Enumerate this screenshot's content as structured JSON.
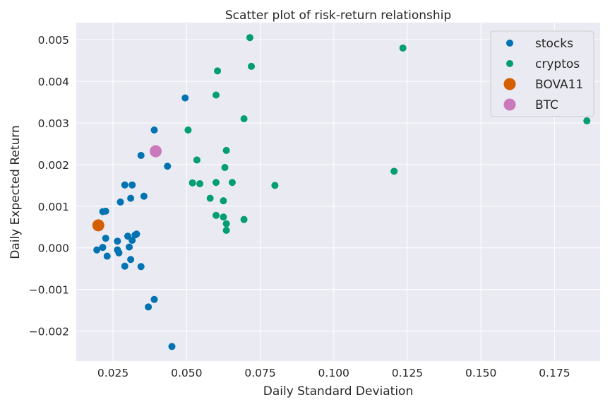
{
  "chart_data": {
    "type": "scatter",
    "title": "Scatter plot of risk-return relationship",
    "xlabel": "Daily Standard Deviation",
    "ylabel": "Daily Expected Return",
    "xlim": [
      0.0125,
      0.1905
    ],
    "ylim": [
      -0.00272,
      0.00541
    ],
    "xticks": [
      0.025,
      0.05,
      0.075,
      0.1,
      0.125,
      0.15,
      0.175
    ],
    "xtick_labels": [
      "0.025",
      "0.050",
      "0.075",
      "0.100",
      "0.125",
      "0.150",
      "0.175"
    ],
    "yticks": [
      -0.002,
      -0.001,
      0.0,
      0.001,
      0.002,
      0.003,
      0.004,
      0.005
    ],
    "ytick_labels": [
      "−0.002",
      "−0.001",
      "0.000",
      "0.001",
      "0.002",
      "0.003",
      "0.004",
      "0.005"
    ],
    "grid": true,
    "legend_position": "top-right",
    "background": "#eaeaf2",
    "series": [
      {
        "name": "stocks",
        "color": "#0173b2",
        "marker": "small",
        "points": [
          [
            0.0495,
            0.0036
          ],
          [
            0.039,
            0.00283
          ],
          [
            0.0345,
            0.00222
          ],
          [
            0.0435,
            0.00196
          ],
          [
            0.029,
            0.00151
          ],
          [
            0.0315,
            0.00151
          ],
          [
            0.0355,
            0.00124
          ],
          [
            0.031,
            0.00119
          ],
          [
            0.0275,
            0.0011
          ],
          [
            0.0225,
            0.00088
          ],
          [
            0.0215,
            0.00087
          ],
          [
            0.033,
            0.00033
          ],
          [
            0.0325,
            0.00031
          ],
          [
            0.03,
            0.00028
          ],
          [
            0.0315,
            0.00018
          ],
          [
            0.0225,
            0.00023
          ],
          [
            0.0265,
            0.00016
          ],
          [
            0.0305,
            2e-05
          ],
          [
            0.0215,
            1e-05
          ],
          [
            0.0195,
            -5e-05
          ],
          [
            0.0265,
            -5e-05
          ],
          [
            0.027,
            -0.00012
          ],
          [
            0.023,
            -0.0002
          ],
          [
            0.031,
            -0.00028
          ],
          [
            0.029,
            -0.00044
          ],
          [
            0.0345,
            -0.00045
          ],
          [
            0.039,
            -0.00124
          ],
          [
            0.037,
            -0.00142
          ],
          [
            0.045,
            -0.00237
          ]
        ]
      },
      {
        "name": "cryptos",
        "color": "#029e73",
        "marker": "small",
        "points": [
          [
            0.0715,
            0.00505
          ],
          [
            0.1235,
            0.0048
          ],
          [
            0.072,
            0.00436
          ],
          [
            0.0605,
            0.00425
          ],
          [
            0.06,
            0.00367
          ],
          [
            0.0695,
            0.0031
          ],
          [
            0.186,
            0.00305
          ],
          [
            0.0505,
            0.00283
          ],
          [
            0.0635,
            0.00234
          ],
          [
            0.0535,
            0.00211
          ],
          [
            0.063,
            0.00193
          ],
          [
            0.1205,
            0.00184
          ],
          [
            0.052,
            0.00156
          ],
          [
            0.06,
            0.00157
          ],
          [
            0.0545,
            0.00154
          ],
          [
            0.0655,
            0.00157
          ],
          [
            0.08,
            0.0015
          ],
          [
            0.058,
            0.00119
          ],
          [
            0.0625,
            0.00113
          ],
          [
            0.06,
            0.00078
          ],
          [
            0.0625,
            0.00074
          ],
          [
            0.0695,
            0.00068
          ],
          [
            0.0635,
            0.00058
          ],
          [
            0.0635,
            0.00042
          ]
        ]
      },
      {
        "name": "BOVA11",
        "color": "#d55e00",
        "marker": "large",
        "points": [
          [
            0.02,
            0.00054
          ]
        ]
      },
      {
        "name": "BTC",
        "color": "#cc78bc",
        "marker": "large",
        "points": [
          [
            0.0395,
            0.00232
          ]
        ]
      }
    ]
  }
}
